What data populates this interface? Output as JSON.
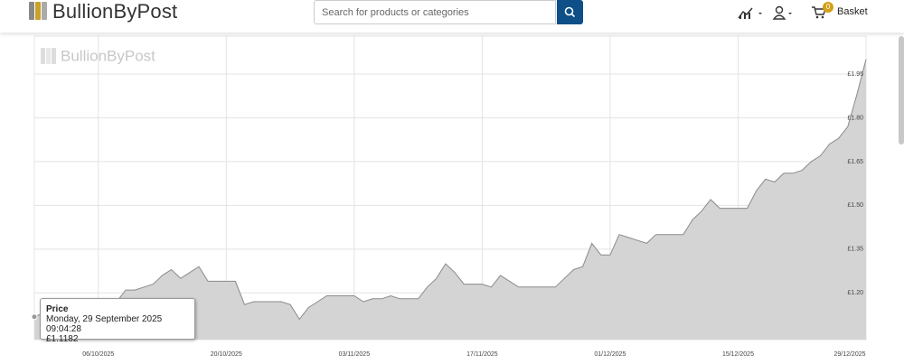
{
  "header": {
    "logo": "BullionByPost",
    "search_placeholder": "Search for products or categories",
    "basket": "Basket",
    "basket_count": "0"
  },
  "chart_data": {
    "type": "area",
    "watermark": "BullionByPost",
    "color": "#d4d4d4",
    "line_color": "#8a8a8a",
    "x": [
      "2025-09-29",
      "2025-09-30",
      "2025-10-01",
      "2025-10-02",
      "2025-10-03",
      "2025-10-04",
      "2025-10-05",
      "2025-10-06",
      "2025-10-07",
      "2025-10-08",
      "2025-10-09",
      "2025-10-10",
      "2025-10-11",
      "2025-10-12",
      "2025-10-13",
      "2025-10-14",
      "2025-10-15",
      "2025-10-16",
      "2025-10-17",
      "2025-10-18",
      "2025-10-19",
      "2025-10-20",
      "2025-10-21",
      "2025-10-22",
      "2025-10-23",
      "2025-10-24",
      "2025-10-25",
      "2025-10-26",
      "2025-10-27",
      "2025-10-28",
      "2025-10-29",
      "2025-10-30",
      "2025-10-31",
      "2025-11-01",
      "2025-11-02",
      "2025-11-03",
      "2025-11-04",
      "2025-11-05",
      "2025-11-06",
      "2025-11-07",
      "2025-11-08",
      "2025-11-09",
      "2025-11-10",
      "2025-11-11",
      "2025-11-12",
      "2025-11-13",
      "2025-11-14",
      "2025-11-15",
      "2025-11-16",
      "2025-11-17",
      "2025-11-18",
      "2025-11-19",
      "2025-11-20",
      "2025-11-21",
      "2025-11-22",
      "2025-11-23",
      "2025-11-24",
      "2025-11-25",
      "2025-11-26",
      "2025-11-27",
      "2025-11-28",
      "2025-11-29",
      "2025-11-30",
      "2025-12-01",
      "2025-12-02",
      "2025-12-03",
      "2025-12-04",
      "2025-12-05",
      "2025-12-06",
      "2025-12-07",
      "2025-12-08",
      "2025-12-09",
      "2025-12-10",
      "2025-12-11",
      "2025-12-12",
      "2025-12-13",
      "2025-12-14",
      "2025-12-15",
      "2025-12-16",
      "2025-12-17",
      "2025-12-18",
      "2025-12-19",
      "2025-12-20",
      "2025-12-21",
      "2025-12-22",
      "2025-12-23",
      "2025-12-24",
      "2025-12-25",
      "2025-12-26",
      "2025-12-27",
      "2025-12-28",
      "2025-12-29"
    ],
    "values": [
      1.1182,
      1.13,
      1.15,
      1.16,
      1.17,
      1.17,
      1.17,
      1.18,
      1.17,
      1.17,
      1.21,
      1.21,
      1.22,
      1.23,
      1.26,
      1.28,
      1.25,
      1.27,
      1.29,
      1.24,
      1.24,
      1.24,
      1.24,
      1.16,
      1.17,
      1.17,
      1.17,
      1.17,
      1.16,
      1.11,
      1.15,
      1.17,
      1.19,
      1.19,
      1.19,
      1.19,
      1.17,
      1.18,
      1.18,
      1.19,
      1.18,
      1.18,
      1.18,
      1.22,
      1.25,
      1.3,
      1.27,
      1.23,
      1.23,
      1.23,
      1.22,
      1.26,
      1.24,
      1.22,
      1.22,
      1.22,
      1.22,
      1.22,
      1.25,
      1.28,
      1.29,
      1.37,
      1.33,
      1.33,
      1.4,
      1.39,
      1.38,
      1.37,
      1.4,
      1.4,
      1.4,
      1.4,
      1.45,
      1.48,
      1.52,
      1.49,
      1.49,
      1.49,
      1.49,
      1.55,
      1.59,
      1.58,
      1.61,
      1.61,
      1.62,
      1.65,
      1.67,
      1.71,
      1.73,
      1.77,
      1.88,
      2.0
    ],
    "xlim": [
      "2025-09-29",
      "2025-12-29"
    ],
    "xticks": [
      {
        "value": "2025-10-06",
        "label": "06/10/2025"
      },
      {
        "value": "2025-10-20",
        "label": "20/10/2025"
      },
      {
        "value": "2025-11-03",
        "label": "03/11/2025"
      },
      {
        "value": "2025-11-17",
        "label": "17/11/2025"
      },
      {
        "value": "2025-12-01",
        "label": "01/12/2025"
      },
      {
        "value": "2025-12-15",
        "label": "15/12/2025"
      },
      {
        "value": "2025-12-29",
        "label": "29/12/2025"
      }
    ],
    "ylim": [
      1.04,
      2.08
    ],
    "yticks": [
      {
        "value": 1.2,
        "label": "£1.20"
      },
      {
        "value": 1.35,
        "label": "£1.35"
      },
      {
        "value": 1.5,
        "label": "£1.50"
      },
      {
        "value": 1.65,
        "label": "£1.65"
      },
      {
        "value": 1.8,
        "label": "£1.80"
      },
      {
        "value": 1.95,
        "label": "£1.95"
      }
    ],
    "grid": true,
    "tooltip": {
      "title": "Price",
      "time": "Monday, 29 September 2025 09:04:28",
      "price": "£1.1182"
    }
  }
}
